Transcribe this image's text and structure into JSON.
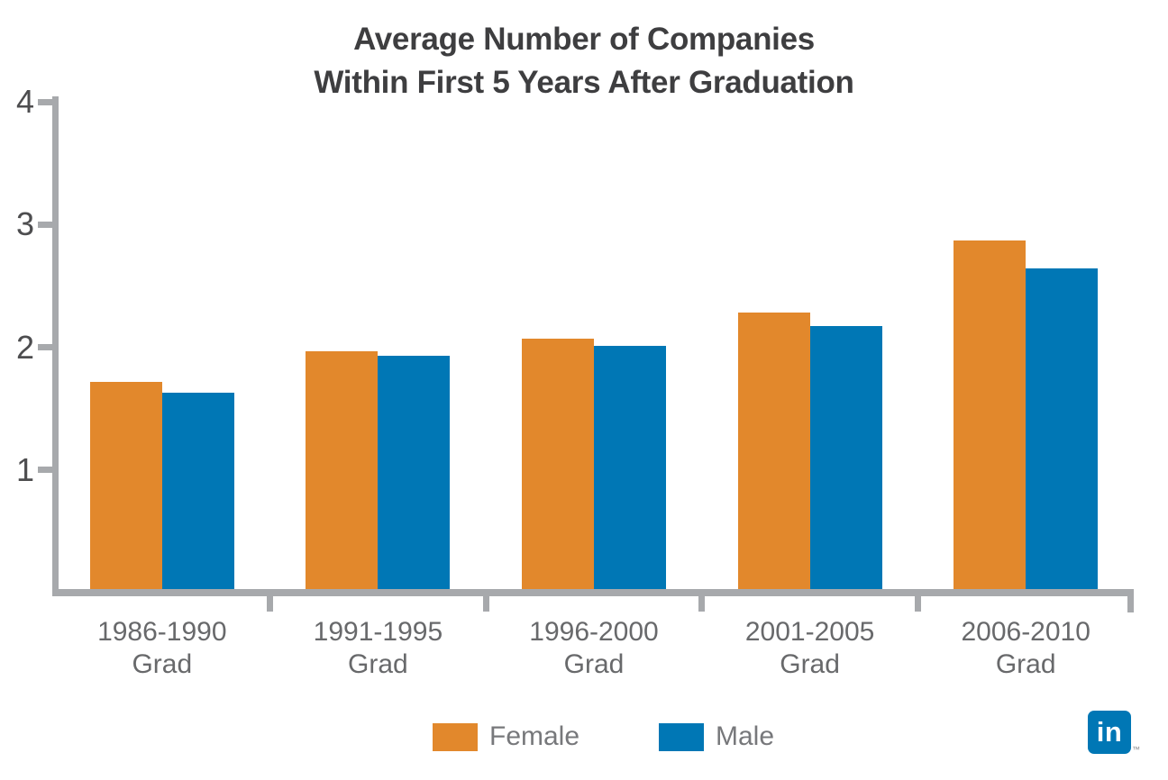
{
  "title": {
    "line1": "Average Number of Companies",
    "line2": "Within First 5 Years After Graduation"
  },
  "chart_data": {
    "type": "bar",
    "title": "Average Number of Companies Within First 5 Years After Graduation",
    "xlabel": "",
    "ylabel": "",
    "categories": [
      "1986-1990",
      "1991-1995",
      "1996-2000",
      "2001-2005",
      "2006-2010"
    ],
    "category_line2": "Grad",
    "series": [
      {
        "name": "Female",
        "color": "#e2882c",
        "values": [
          1.72,
          1.97,
          2.07,
          2.28,
          2.87
        ]
      },
      {
        "name": "Male",
        "color": "#0077b5",
        "values": [
          1.63,
          1.93,
          2.01,
          2.17,
          2.64
        ]
      }
    ],
    "ylim": [
      0,
      4
    ],
    "yticks": [
      1,
      2,
      3,
      4
    ],
    "grid": false,
    "legend_position": "bottom"
  },
  "colors": {
    "female_bar": "#e2882c",
    "male_bar": "#0077b5",
    "axis": "#a7a9ac",
    "title_text": "#3e3e40",
    "tick_label_text": "#4d4d4f",
    "category_label_text": "#68696b",
    "legend_label_text": "#77787b",
    "linkedin_blue": "#0077b5",
    "background": "#ffffff"
  },
  "branding": {
    "logo_text": "in",
    "trademark": "™"
  }
}
